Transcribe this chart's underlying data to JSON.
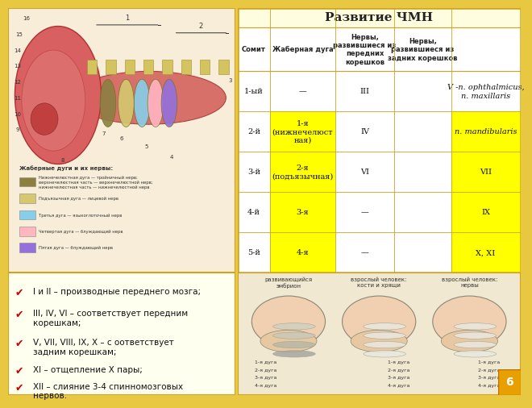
{
  "title": "Развитие ЧМН",
  "bg_outer": "#E8C840",
  "bg_inner": "#FFFEF0",
  "header_bg": "#FFFDE0",
  "yellow_bg": "#FFFF00",
  "white_bg": "#FFFFFF",
  "border_color": "#D4A020",
  "col_headers": [
    "Сомит",
    "Жаберная дуга",
    "Нервы,\nразвившиеся из\nпередних\nкорешков",
    "Нервы,\nразвившиеся из\nзадних корешков"
  ],
  "rows": [
    {
      "somit": "1-ый",
      "arch": "—",
      "arch_bg": "#FFFFFF",
      "anterior": "III",
      "ant_bg": "#FFFFFF",
      "posterior": "V -n. ophthalmicus,\nn. maxillaris",
      "post_bg": "#FFFFFF",
      "post_italic": true
    },
    {
      "somit": "2-й",
      "arch": "1-я\n(нижнечелюст\nная)",
      "arch_bg": "#FFFF00",
      "anterior": "IV",
      "ant_bg": "#FFFFFF",
      "posterior": "n. mandibularis",
      "post_bg": "#FFFF00",
      "post_italic": true
    },
    {
      "somit": "3-й",
      "arch": "2-я\n(подъязычная)",
      "arch_bg": "#FFFF00",
      "anterior": "VI",
      "ant_bg": "#FFFFFF",
      "posterior": "VII",
      "post_bg": "#FFFF00",
      "post_italic": false
    },
    {
      "somit": "4-й",
      "arch": "3-я",
      "arch_bg": "#FFFF00",
      "anterior": "—",
      "ant_bg": "#FFFFFF",
      "posterior": "IX",
      "post_bg": "#FFFF00",
      "post_italic": false
    },
    {
      "somit": "5-й",
      "arch": "4-я",
      "arch_bg": "#FFFF00",
      "anterior": "—",
      "ant_bg": "#FFFFFF",
      "posterior": "X, XI",
      "post_bg": "#FFFF00",
      "post_italic": false
    }
  ],
  "bullet_color": "#CC0000",
  "bullet_points": [
    "I и II – производные переднего мозга;",
    "III, IV, VI – соответствует передним\nкорешкам;",
    "V, VII, VIII, IX, X – с оответствует\nзадним корешкам;",
    "XI – отщепление X пары;",
    "XII – слияние 3-4 спинномозговых\nнервов."
  ],
  "bottom_right_label": "6",
  "face_labels": [
    "развивающийся\nэмбрион",
    "взрослый человек:\nкости и хрящи",
    "взрослый человек:\nнервы"
  ],
  "arch_labels_per_face": [
    [
      "1-я дуга",
      "2-я дуга",
      "3-я дуга",
      "4-я дуга"
    ],
    [
      "1-я дуга",
      "2-я дуга",
      "3-я дуга",
      "4-я дуга"
    ],
    [
      "1-я дуга",
      "2-я дуга",
      "3-я дуга",
      "4-я дуга"
    ]
  ],
  "legend_title": "Жаберные дуги и их нервы:",
  "legend_items": [
    [
      "#8B8040",
      "Нижнечелюстная дуга — тройничный нерв;\nверхнечелюстная часть — верхнечелюстной нерв;\nнижнечелюстная часть — нижнечелюстной нерв"
    ],
    [
      "#D4C870",
      "Подъязычная дуга — лицевой нерв"
    ],
    [
      "#87CEEB",
      "Третья дуга — языкоглоточный нерв"
    ],
    [
      "#FFB6C1",
      "Четвертая дуга — блуждающий нерв"
    ],
    [
      "#9370DB",
      "Пятая дуга — блуждающий нерв"
    ]
  ]
}
